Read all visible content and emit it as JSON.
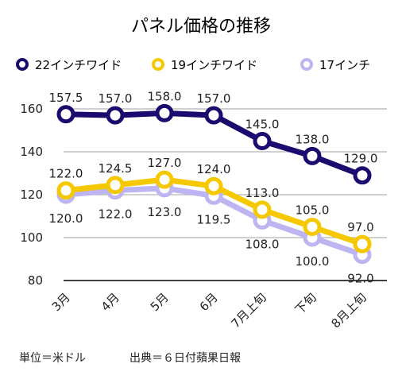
{
  "chart_data": {
    "type": "line",
    "title": "パネル価格の推移",
    "categories": [
      "3月",
      "4月",
      "5月",
      "6月",
      "7月上旬",
      "下旬",
      "8月上旬"
    ],
    "series": [
      {
        "name": "22インチワイド",
        "color": "#1a0b6e",
        "values": [
          157.5,
          157.0,
          158.0,
          157.0,
          145.0,
          138.0,
          129.0
        ],
        "labels": [
          "157.5",
          "157.0",
          "158.0",
          "157.0",
          "145.0",
          "138.0",
          "129.0"
        ]
      },
      {
        "name": "19インチワイド",
        "color": "#f5c800",
        "values": [
          122.0,
          124.5,
          127.0,
          124.0,
          113.0,
          105.0,
          97.0
        ],
        "labels": [
          "122.0",
          "124.5",
          "127.0",
          "124.0",
          "113.0",
          "105.0",
          "97.0"
        ]
      },
      {
        "name": "17インチ",
        "color": "#bdb4f2",
        "values": [
          120.0,
          122.0,
          123.0,
          119.5,
          108.0,
          100.0,
          92.0
        ],
        "labels": [
          "120.0",
          "122.0",
          "123.0",
          "119.5",
          "108.0",
          "100.0",
          "92.0"
        ]
      }
    ],
    "ylim": [
      80,
      160
    ],
    "yticks": [
      80,
      100,
      120,
      140,
      160
    ],
    "grid": true,
    "legend": "top",
    "unit_note": "単位＝米ドル",
    "source_note": "出典＝６日付蘋果日報"
  }
}
